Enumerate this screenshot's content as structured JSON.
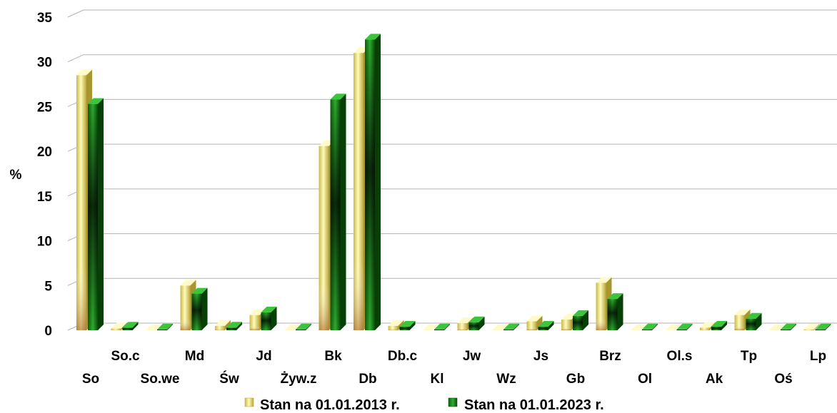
{
  "chart_data": {
    "type": "bar",
    "ylabel": "%",
    "ylim": [
      0,
      35
    ],
    "yticks": [
      0,
      5,
      10,
      15,
      20,
      25,
      30,
      35
    ],
    "grid": true,
    "legend_position": "bottom",
    "categories": [
      "So",
      "So.c",
      "So.we",
      "Md",
      "Św",
      "Jd",
      "Żyw.z",
      "Bk",
      "Db",
      "Db.c",
      "Kl",
      "Jw",
      "Wz",
      "Js",
      "Gb",
      "Brz",
      "Ol",
      "Ol.s",
      "Ak",
      "Tp",
      "Oś",
      "Lp"
    ],
    "series": [
      {
        "name": "Stan na 01.01.2013 r.",
        "color": "#f0e868",
        "values": [
          28.5,
          0.2,
          0.0,
          5.0,
          0.5,
          1.7,
          0.0,
          20.6,
          31.0,
          0.5,
          0.0,
          0.8,
          0.0,
          1.0,
          1.2,
          5.3,
          0.0,
          0.0,
          0.3,
          1.7,
          0.0,
          0.1
        ]
      },
      {
        "name": "Stan na 01.01.2023 r.",
        "color": "#1a7a1a",
        "values": [
          25.3,
          0.3,
          0.1,
          4.1,
          0.3,
          2.0,
          0.1,
          25.8,
          32.5,
          0.4,
          0.1,
          0.9,
          0.1,
          0.4,
          1.6,
          3.5,
          0.1,
          0.1,
          0.4,
          1.3,
          0.1,
          0.1
        ]
      }
    ]
  }
}
